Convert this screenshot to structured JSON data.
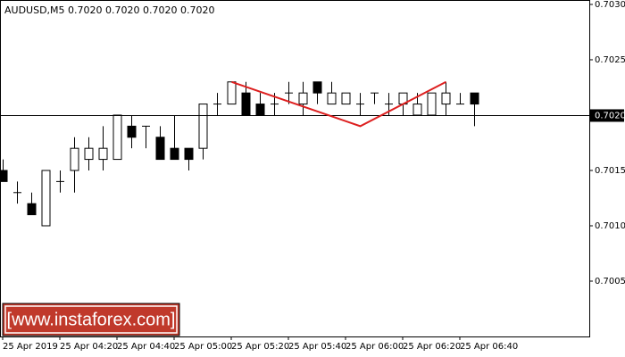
{
  "chart_data": {
    "type": "candlestick",
    "title": "AUDUSD,M5  0.7020 0.7020 0.7020 0.7020",
    "categories": [
      "25 Apr 2019",
      null,
      null,
      null,
      "25 Apr 04:20",
      null,
      null,
      null,
      "25 Apr 04:40",
      null,
      null,
      null,
      "25 Apr 05:00",
      null,
      null,
      null,
      "25 Apr 05:20",
      null,
      null,
      null,
      "25 Apr 05:40",
      null,
      null,
      null,
      "25 Apr 06:00",
      null,
      null,
      null,
      "25 Apr 06:20",
      null,
      null,
      null,
      "25 Apr 06:40",
      null
    ],
    "open": [
      0.7015,
      0.7013,
      0.7012,
      0.701,
      0.7014,
      0.7015,
      0.7016,
      0.7016,
      0.7016,
      0.7019,
      0.7019,
      0.7018,
      0.7017,
      0.7017,
      0.7017,
      0.7021,
      0.7021,
      0.7022,
      0.7021,
      0.7021,
      0.7022,
      0.7021,
      0.7023,
      0.7021,
      0.7021,
      0.7021,
      0.7022,
      0.7021,
      0.7021,
      0.702,
      0.702,
      0.7021,
      0.7021,
      0.7022
    ],
    "high": [
      0.7016,
      0.7014,
      0.7013,
      0.7015,
      0.7015,
      0.7018,
      0.7018,
      0.7019,
      0.702,
      0.702,
      0.7019,
      0.7019,
      0.702,
      0.7017,
      0.7021,
      0.7022,
      0.7023,
      0.7023,
      0.7022,
      0.7022,
      0.7023,
      0.7023,
      0.7023,
      0.7023,
      0.7022,
      0.7022,
      0.7022,
      0.7022,
      0.7022,
      0.7022,
      0.7022,
      0.7023,
      0.7022,
      0.7022
    ],
    "low": [
      0.7014,
      0.7012,
      0.7011,
      0.701,
      0.7013,
      0.7013,
      0.7015,
      0.7015,
      0.7016,
      0.7017,
      0.7017,
      0.7016,
      0.7016,
      0.7015,
      0.7016,
      0.702,
      0.7021,
      0.702,
      0.702,
      0.702,
      0.7021,
      0.702,
      0.7021,
      0.7021,
      0.7021,
      0.702,
      0.7021,
      0.702,
      0.702,
      0.702,
      0.702,
      0.702,
      0.7021,
      0.7019
    ],
    "close": [
      0.7014,
      0.7013,
      0.7011,
      0.7015,
      0.7014,
      0.7017,
      0.7017,
      0.7017,
      0.702,
      0.7018,
      0.7019,
      0.7016,
      0.7016,
      0.7016,
      0.7021,
      0.7021,
      0.7023,
      0.702,
      0.702,
      0.7021,
      0.7022,
      0.7022,
      0.7022,
      0.7022,
      0.7022,
      0.7021,
      0.7022,
      0.7021,
      0.7022,
      0.7021,
      0.7022,
      0.7022,
      0.7021,
      0.7021
    ],
    "up_color": "#ffffff",
    "down_color": "#000000",
    "outline_color": "#000000",
    "ylim": [
      0.7,
      0.70304
    ],
    "yticks": [
      {
        "value": 0.7005,
        "label": "0.7005"
      },
      {
        "value": 0.701,
        "label": "0.7010"
      },
      {
        "value": 0.7015,
        "label": "0.7015"
      },
      {
        "value": 0.7025,
        "label": "0.7025"
      },
      {
        "value": 0.703,
        "label": "0.7030"
      }
    ],
    "last_price": {
      "value": 0.702,
      "label": "0.7020"
    },
    "pattern": {
      "color": "#dd1f1f",
      "index": [
        16,
        25,
        31
      ],
      "values": [
        0.7023,
        0.7019,
        0.7023
      ]
    },
    "watermark": "[www.instaforex.com]"
  }
}
